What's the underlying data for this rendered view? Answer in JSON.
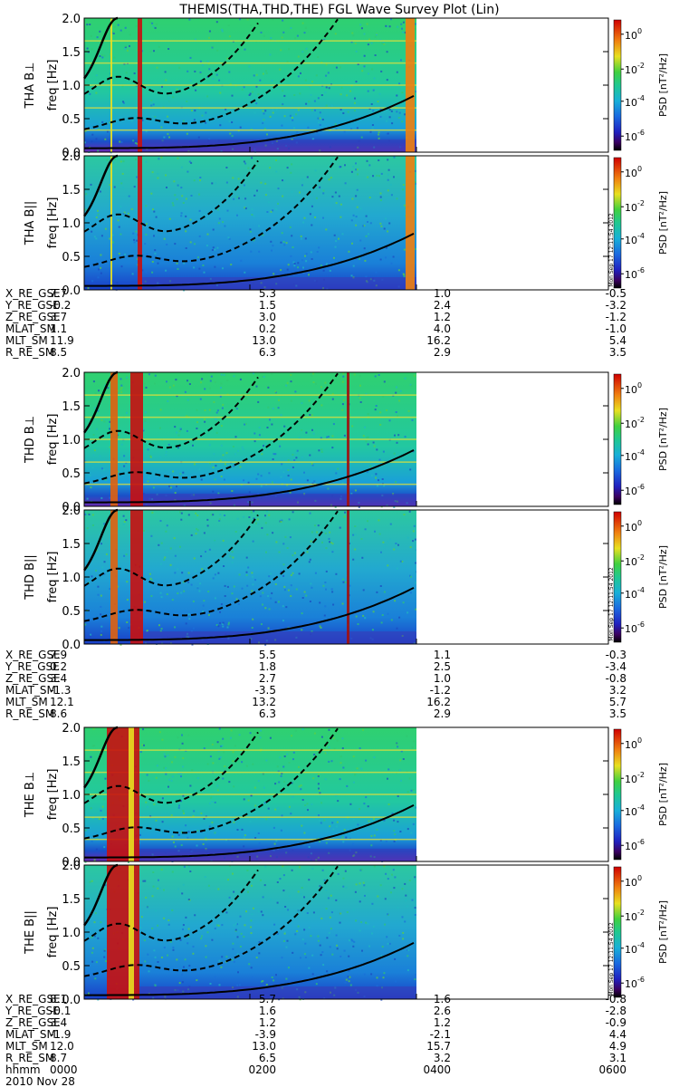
{
  "title": "THEMIS(THA,THD,THE) FGL Wave Survey Plot (Lin)",
  "colors": {
    "bg_green": "#2ecc71",
    "line": "#000000",
    "spike_red": "#c80000"
  },
  "colorbar": {
    "label_prefix": "PSD ",
    "label_units": "[nT²/Hz]",
    "ticks": [
      {
        "base": "10",
        "exp": "0"
      },
      {
        "base": "10",
        "exp": "-2"
      },
      {
        "base": "10",
        "exp": "-4"
      },
      {
        "base": "10",
        "exp": "-6"
      }
    ],
    "stamp": "Mon Sep 17 12:11:54 2012"
  },
  "ylabel_freq": "freq [Hz]",
  "freq_ticks": [
    "0.0",
    "0.5",
    "1.0",
    "1.5",
    "2.0"
  ],
  "footer": {
    "hhmm_label": "hhmm",
    "times": [
      "0000",
      "0200",
      "0400",
      "0600"
    ],
    "date": "2010 Nov 28"
  },
  "chart_data": [
    {
      "type": "heatmap",
      "probe": "THA",
      "panels": [
        {
          "label": "THA B⊥",
          "ylim": [
            0,
            2.0
          ]
        },
        {
          "label": "THA B||",
          "ylim": [
            0,
            2.0
          ]
        }
      ],
      "ephemeris": [
        {
          "name": "X_RE_GSE",
          "values": [
            "7.7",
            "5.3",
            "1.0",
            "-0.5"
          ]
        },
        {
          "name": "Y_RE_GSE",
          "values": [
            "-0.2",
            "1.5",
            "2.4",
            "-3.2"
          ]
        },
        {
          "name": "Z_RE_GSE",
          "values": [
            "3.7",
            "3.0",
            "1.2",
            "-1.2"
          ]
        },
        {
          "name": "MLAT_SM",
          "values": [
            "1.1",
            "0.2",
            "4.0",
            "-1.0"
          ]
        },
        {
          "name": "MLT_SM",
          "values": [
            "11.9",
            "13.0",
            "16.2",
            "5.4"
          ]
        },
        {
          "name": "R_RE_SM",
          "values": [
            "8.5",
            "6.3",
            "2.9",
            "3.5"
          ]
        }
      ]
    },
    {
      "type": "heatmap",
      "probe": "THD",
      "panels": [
        {
          "label": "THD B⊥",
          "ylim": [
            0,
            2.0
          ]
        },
        {
          "label": "THD B||",
          "ylim": [
            0,
            2.0
          ]
        }
      ],
      "ephemeris": [
        {
          "name": "X_RE_GSE",
          "values": [
            "7.9",
            "5.5",
            "1.1",
            "-0.3"
          ]
        },
        {
          "name": "Y_RE_GSE",
          "values": [
            "0.2",
            "1.8",
            "2.5",
            "-3.4"
          ]
        },
        {
          "name": "Z_RE_GSE",
          "values": [
            "3.4",
            "2.7",
            "1.0",
            "-0.8"
          ]
        },
        {
          "name": "MLAT_SM",
          "values": [
            "-1.3",
            "-3.5",
            "-1.2",
            "3.2"
          ]
        },
        {
          "name": "MLT_SM",
          "values": [
            "12.1",
            "13.2",
            "16.2",
            "5.7"
          ]
        },
        {
          "name": "R_RE_SM",
          "values": [
            "8.6",
            "6.3",
            "2.9",
            "3.5"
          ]
        }
      ]
    },
    {
      "type": "heatmap",
      "probe": "THE",
      "panels": [
        {
          "label": "THE B⊥",
          "ylim": [
            0,
            2.0
          ]
        },
        {
          "label": "THE B||",
          "ylim": [
            0,
            2.0
          ]
        }
      ],
      "ephemeris": [
        {
          "name": "X_RE_GSE",
          "values": [
            "8.1",
            "5.7",
            "1.6",
            "-0.8"
          ]
        },
        {
          "name": "Y_RE_GSE",
          "values": [
            "-0.1",
            "1.6",
            "2.6",
            "-2.8"
          ]
        },
        {
          "name": "Z_RE_GSE",
          "values": [
            "3.4",
            "1.2",
            "1.2",
            "-0.9"
          ]
        },
        {
          "name": "MLAT_SM",
          "values": [
            "-1.9",
            "-3.9",
            "-2.1",
            "4.4"
          ]
        },
        {
          "name": "MLT_SM",
          "values": [
            "12.0",
            "13.0",
            "15.7",
            "4.9"
          ]
        },
        {
          "name": "R_RE_SM",
          "values": [
            "8.7",
            "6.5",
            "3.2",
            "3.1"
          ]
        }
      ]
    }
  ]
}
